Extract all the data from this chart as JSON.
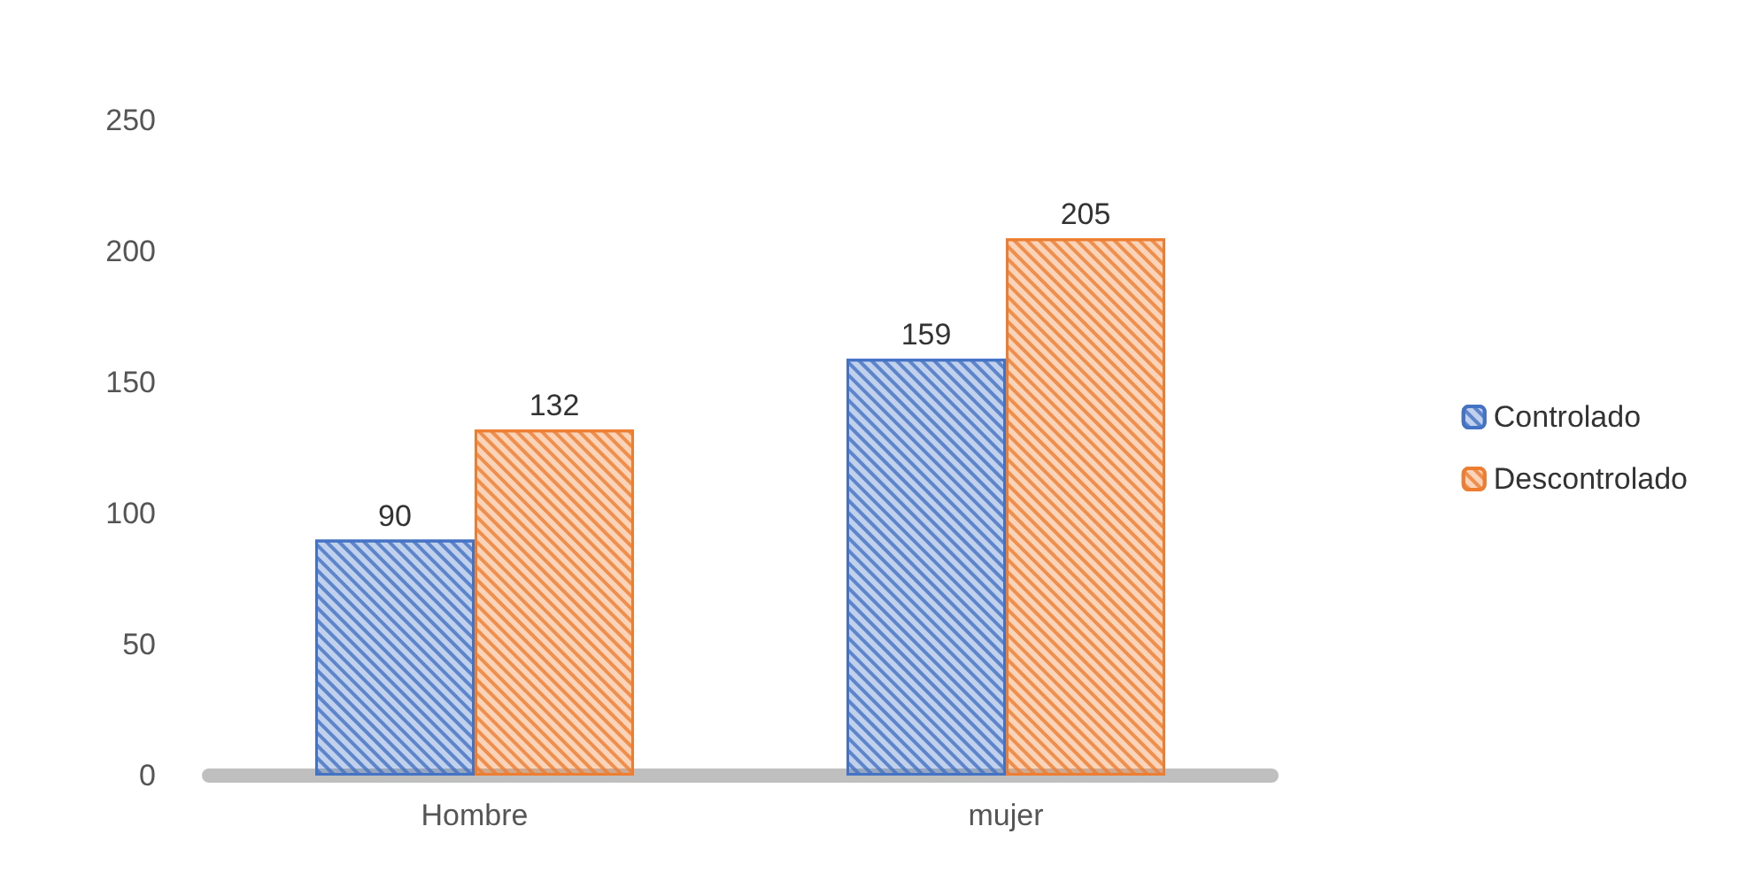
{
  "chart_data": {
    "type": "bar",
    "categories": [
      "Hombre",
      "mujer"
    ],
    "series": [
      {
        "name": "Controlado",
        "color": "#4472c4",
        "values": [
          90,
          159
        ]
      },
      {
        "name": "Descontrolado",
        "color": "#ed7d31",
        "values": [
          132,
          205
        ]
      }
    ],
    "ylim": [
      0,
      250
    ],
    "yticks": [
      0,
      50,
      100,
      150,
      200,
      250
    ],
    "grid": false,
    "legend": "right",
    "data_labels": true
  }
}
